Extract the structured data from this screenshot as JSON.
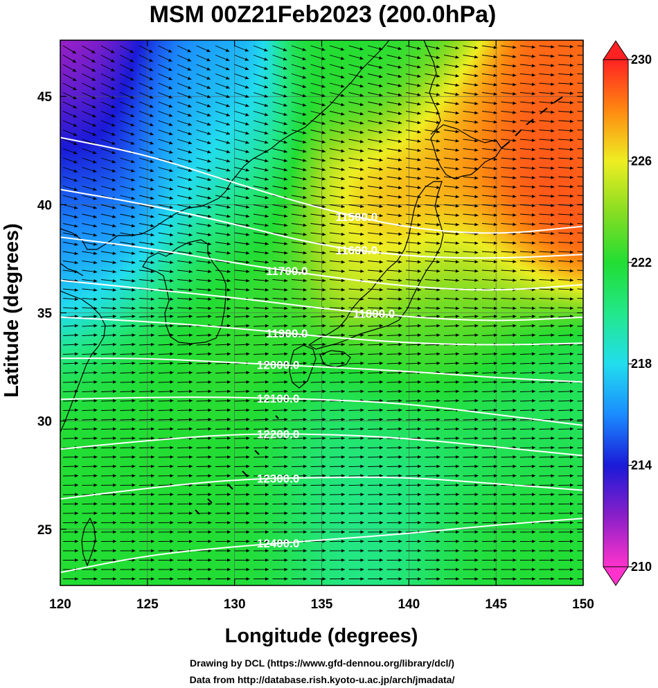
{
  "figure": {
    "title": "MSM 00Z21Feb2023 (200.0hPa)",
    "credit_line1": "Drawing by DCL (https://www.gfd-dennou.org/library/dcl/)",
    "credit_line2": "Data from http://database.rish.kyoto-u.ac.jp/arch/jmadata/"
  },
  "chart_data": {
    "type": "heatmap",
    "title": "MSM 00Z21Feb2023 (200.0hPa)",
    "xlabel": "Longitude (degrees)",
    "ylabel": "Latitude  (degrees)",
    "xlim": [
      120,
      150
    ],
    "ylim": [
      22.4,
      47.6
    ],
    "xticks": [
      "120",
      "125",
      "130",
      "135",
      "140",
      "145",
      "150"
    ],
    "yticks": [
      "25",
      "30",
      "35",
      "40",
      "45"
    ],
    "grid": true,
    "colorbar": {
      "range": [
        210,
        230
      ],
      "tick_labels": [
        "210",
        "214",
        "218",
        "222",
        "226",
        "230"
      ],
      "stops": [
        {
          "v": 210,
          "c": "#ff33cc"
        },
        {
          "v": 212,
          "c": "#8a1fc8"
        },
        {
          "v": 214,
          "c": "#1a1ad8"
        },
        {
          "v": 216,
          "c": "#1a8cff"
        },
        {
          "v": 218,
          "c": "#22ddee"
        },
        {
          "v": 220,
          "c": "#22e88a"
        },
        {
          "v": 222,
          "c": "#22dd33"
        },
        {
          "v": 224,
          "c": "#88dd22"
        },
        {
          "v": 226,
          "c": "#eeee22"
        },
        {
          "v": 228,
          "c": "#ff8811"
        },
        {
          "v": 230,
          "c": "#ff2222"
        }
      ]
    },
    "contours": [
      {
        "label": "11500.0",
        "points": [
          [
            120,
            43.1
          ],
          [
            125,
            42.3
          ],
          [
            130,
            41.0
          ],
          [
            135,
            39.8
          ],
          [
            140,
            38.9
          ],
          [
            145,
            38.6
          ],
          [
            150,
            39.0
          ]
        ]
      },
      {
        "label": "11600.0",
        "points": [
          [
            120,
            40.7
          ],
          [
            125,
            40.0
          ],
          [
            130,
            39.1
          ],
          [
            135,
            38.1
          ],
          [
            140,
            37.6
          ],
          [
            145,
            37.5
          ],
          [
            150,
            37.7
          ]
        ]
      },
      {
        "label": "11700.0",
        "points": [
          [
            120,
            38.5
          ],
          [
            125,
            38.0
          ],
          [
            130,
            37.3
          ],
          [
            135,
            36.7
          ],
          [
            140,
            36.2
          ],
          [
            145,
            36.0
          ],
          [
            150,
            36.3
          ]
        ]
      },
      {
        "label": "11800.0",
        "points": [
          [
            120,
            36.5
          ],
          [
            125,
            36.1
          ],
          [
            130,
            35.7
          ],
          [
            135,
            35.2
          ],
          [
            140,
            34.8
          ],
          [
            145,
            34.6
          ],
          [
            150,
            34.8
          ]
        ]
      },
      {
        "label": "11900.0",
        "points": [
          [
            120,
            34.8
          ],
          [
            125,
            34.6
          ],
          [
            130,
            34.3
          ],
          [
            135,
            33.9
          ],
          [
            140,
            33.6
          ],
          [
            145,
            33.5
          ],
          [
            150,
            33.6
          ]
        ]
      },
      {
        "label": "12000.0",
        "points": [
          [
            120,
            32.9
          ],
          [
            125,
            32.9
          ],
          [
            130,
            32.7
          ],
          [
            135,
            32.5
          ],
          [
            140,
            32.3
          ],
          [
            145,
            32.0
          ],
          [
            150,
            31.8
          ]
        ]
      },
      {
        "label": "12100.0",
        "points": [
          [
            120,
            31.0
          ],
          [
            125,
            31.1
          ],
          [
            130,
            31.1
          ],
          [
            135,
            31.0
          ],
          [
            140,
            30.8
          ],
          [
            145,
            30.3
          ],
          [
            150,
            29.8
          ]
        ]
      },
      {
        "label": "12200.0",
        "points": [
          [
            120,
            28.7
          ],
          [
            125,
            29.1
          ],
          [
            130,
            29.4
          ],
          [
            135,
            29.4
          ],
          [
            140,
            29.2
          ],
          [
            145,
            28.8
          ],
          [
            150,
            28.4
          ]
        ]
      },
      {
        "label": "12300.0",
        "points": [
          [
            120,
            26.4
          ],
          [
            125,
            26.9
          ],
          [
            130,
            27.3
          ],
          [
            135,
            27.4
          ],
          [
            140,
            27.4
          ],
          [
            145,
            27.1
          ],
          [
            150,
            26.8
          ]
        ]
      },
      {
        "label": "12400.0",
        "points": [
          [
            120,
            23.0
          ],
          [
            125,
            23.8
          ],
          [
            130,
            24.2
          ],
          [
            135,
            24.5
          ],
          [
            140,
            24.8
          ],
          [
            145,
            25.2
          ],
          [
            150,
            25.5
          ]
        ]
      }
    ],
    "temperature_centers": [
      {
        "lon": 120.5,
        "lat": 47.3,
        "value": 210.5,
        "sigma": 2.8
      },
      {
        "lon": 122.0,
        "lat": 44.0,
        "value": 213.5,
        "sigma": 3.8
      },
      {
        "lon": 121.0,
        "lat": 40.5,
        "value": 215.0,
        "sigma": 3.2
      },
      {
        "lon": 121.0,
        "lat": 37.3,
        "value": 217.5,
        "sigma": 2.5
      },
      {
        "lon": 127.0,
        "lat": 45.5,
        "value": 217.0,
        "sigma": 2.4
      },
      {
        "lon": 128.0,
        "lat": 42.0,
        "value": 218.5,
        "sigma": 2.5
      },
      {
        "lon": 138.0,
        "lat": 46.5,
        "value": 222.0,
        "sigma": 2.5
      },
      {
        "lon": 131.0,
        "lat": 36.0,
        "value": 222.5,
        "sigma": 4.0
      },
      {
        "lon": 124.0,
        "lat": 31.5,
        "value": 222.0,
        "sigma": 3.5
      },
      {
        "lon": 138.5,
        "lat": 39.5,
        "value": 227.5,
        "sigma": 2.4
      },
      {
        "lon": 137.0,
        "lat": 36.8,
        "value": 226.0,
        "sigma": 1.6
      },
      {
        "lon": 142.5,
        "lat": 42.0,
        "value": 227.5,
        "sigma": 2.5
      },
      {
        "lon": 147.0,
        "lat": 40.5,
        "value": 229.5,
        "sigma": 2.6
      },
      {
        "lon": 150.0,
        "lat": 42.5,
        "value": 228.5,
        "sigma": 2.5
      },
      {
        "lon": 143.5,
        "lat": 36.0,
        "value": 224.0,
        "sigma": 2.5
      },
      {
        "lon": 140.0,
        "lat": 33.5,
        "value": 223.0,
        "sigma": 2.6
      },
      {
        "lon": 146.0,
        "lat": 31.0,
        "value": 221.0,
        "sigma": 3.0
      },
      {
        "lon": 138.0,
        "lat": 27.5,
        "value": 220.0,
        "sigma": 3.5
      },
      {
        "lon": 128.0,
        "lat": 26.0,
        "value": 222.0,
        "sigma": 3.5
      },
      {
        "lon": 146.0,
        "lat": 24.0,
        "value": 222.0,
        "sigma": 3.0
      }
    ]
  }
}
